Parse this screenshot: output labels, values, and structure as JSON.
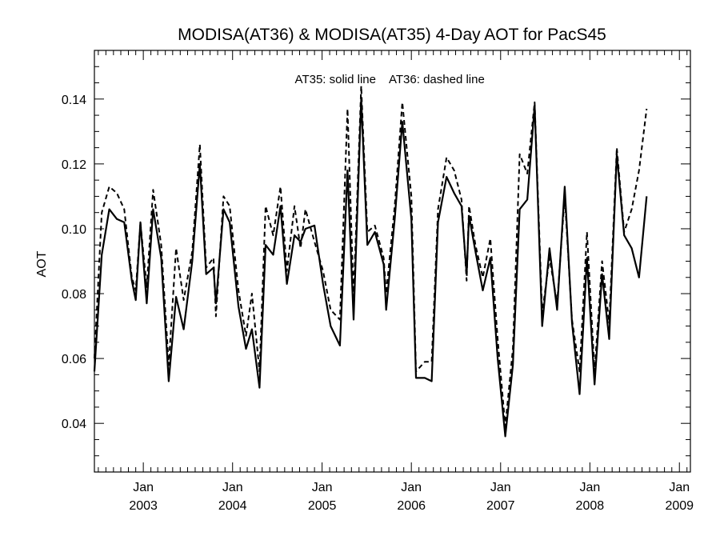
{
  "chart_data": {
    "type": "line",
    "title": "MODISA(AT36) & MODISA(AT35) 4-Day AOT for PacS45",
    "ylabel": "AOT",
    "xlabel": "",
    "annotation_solid": "AT35: solid line",
    "annotation_dashed": "AT36: dashed line",
    "ylim": [
      0.025,
      0.155
    ],
    "xlim": [
      "2002-06-15",
      "2009-02-15"
    ],
    "y_ticks": [
      0.04,
      0.06,
      0.08,
      0.1,
      0.12,
      0.14
    ],
    "y_tick_labels": [
      "0.04",
      "0.06",
      "0.08",
      "0.10",
      "0.12",
      "0.14"
    ],
    "x_ticks": [
      {
        "date": "2003-01-01",
        "month": "Jan",
        "year": "2003"
      },
      {
        "date": "2004-01-01",
        "month": "Jan",
        "year": "2004"
      },
      {
        "date": "2005-01-01",
        "month": "Jan",
        "year": "2005"
      },
      {
        "date": "2006-01-01",
        "month": "Jan",
        "year": "2006"
      },
      {
        "date": "2007-01-01",
        "month": "Jan",
        "year": "2007"
      },
      {
        "date": "2008-01-01",
        "month": "Jan",
        "year": "2008"
      },
      {
        "date": "2009-01-01",
        "month": "Jan",
        "year": "2009"
      }
    ],
    "grid": false,
    "series": [
      {
        "name": "AT35",
        "style": "solid",
        "points": [
          [
            "2002-06-15",
            0.056
          ],
          [
            "2002-07-15",
            0.092
          ],
          [
            "2002-08-15",
            0.106
          ],
          [
            "2002-09-15",
            0.103
          ],
          [
            "2002-10-15",
            0.102
          ],
          [
            "2002-11-15",
            0.084
          ],
          [
            "2002-12-01",
            0.078
          ],
          [
            "2002-12-20",
            0.102
          ],
          [
            "2003-01-15",
            0.077
          ],
          [
            "2003-02-10",
            0.106
          ],
          [
            "2003-03-15",
            0.091
          ],
          [
            "2003-04-15",
            0.053
          ],
          [
            "2003-05-15",
            0.079
          ],
          [
            "2003-06-15",
            0.069
          ],
          [
            "2003-07-20",
            0.09
          ],
          [
            "2003-08-20",
            0.12
          ],
          [
            "2003-09-15",
            0.086
          ],
          [
            "2003-10-15",
            0.088
          ],
          [
            "2003-10-25",
            0.077
          ],
          [
            "2003-11-25",
            0.106
          ],
          [
            "2003-12-20",
            0.102
          ],
          [
            "2004-01-25",
            0.076
          ],
          [
            "2004-02-25",
            0.063
          ],
          [
            "2004-03-20",
            0.069
          ],
          [
            "2004-04-20",
            0.051
          ],
          [
            "2004-05-15",
            0.095
          ],
          [
            "2004-06-15",
            0.092
          ],
          [
            "2004-07-15",
            0.107
          ],
          [
            "2004-08-10",
            0.083
          ],
          [
            "2004-09-10",
            0.098
          ],
          [
            "2004-10-05",
            0.096
          ],
          [
            "2004-10-25",
            0.1
          ],
          [
            "2004-12-01",
            0.101
          ],
          [
            "2005-01-05",
            0.083
          ],
          [
            "2005-02-05",
            0.07
          ],
          [
            "2005-03-15",
            0.064
          ],
          [
            "2005-04-15",
            0.118
          ],
          [
            "2005-05-10",
            0.072
          ],
          [
            "2005-06-10",
            0.14
          ],
          [
            "2005-07-05",
            0.095
          ],
          [
            "2005-08-05",
            0.099
          ],
          [
            "2005-09-10",
            0.089
          ],
          [
            "2005-09-20",
            0.075
          ],
          [
            "2005-10-25",
            0.103
          ],
          [
            "2005-11-25",
            0.133
          ],
          [
            "2006-01-01",
            0.103
          ],
          [
            "2006-01-20",
            0.054
          ],
          [
            "2006-02-25",
            0.054
          ],
          [
            "2006-03-25",
            0.053
          ],
          [
            "2006-04-20",
            0.102
          ],
          [
            "2006-05-25",
            0.116
          ],
          [
            "2006-06-25",
            0.111
          ],
          [
            "2006-07-25",
            0.107
          ],
          [
            "2006-08-15",
            0.086
          ],
          [
            "2006-08-25",
            0.104
          ],
          [
            "2006-09-20",
            0.093
          ],
          [
            "2006-10-20",
            0.081
          ],
          [
            "2006-11-20",
            0.091
          ],
          [
            "2006-12-20",
            0.06
          ],
          [
            "2007-01-20",
            0.036
          ],
          [
            "2007-02-20",
            0.058
          ],
          [
            "2007-03-20",
            0.106
          ],
          [
            "2007-04-20",
            0.109
          ],
          [
            "2007-05-20",
            0.138
          ],
          [
            "2007-06-20",
            0.07
          ],
          [
            "2007-07-20",
            0.094
          ],
          [
            "2007-08-20",
            0.075
          ],
          [
            "2007-09-20",
            0.113
          ],
          [
            "2007-10-20",
            0.071
          ],
          [
            "2007-11-20",
            0.049
          ],
          [
            "2007-12-20",
            0.091
          ],
          [
            "2008-01-20",
            0.052
          ],
          [
            "2008-02-20",
            0.086
          ],
          [
            "2008-03-20",
            0.066
          ],
          [
            "2008-04-20",
            0.123
          ],
          [
            "2008-05-20",
            0.098
          ],
          [
            "2008-06-20",
            0.094
          ],
          [
            "2008-07-20",
            0.085
          ],
          [
            "2008-08-20",
            0.11
          ]
        ]
      },
      {
        "name": "AT36",
        "style": "dashed",
        "points": [
          [
            "2002-06-15",
            0.06
          ],
          [
            "2002-07-15",
            0.105
          ],
          [
            "2002-08-15",
            0.113
          ],
          [
            "2002-09-15",
            0.111
          ],
          [
            "2002-10-15",
            0.106
          ],
          [
            "2002-11-15",
            0.085
          ],
          [
            "2002-12-01",
            0.081
          ],
          [
            "2002-12-20",
            0.102
          ],
          [
            "2003-01-15",
            0.082
          ],
          [
            "2003-02-10",
            0.112
          ],
          [
            "2003-03-15",
            0.095
          ],
          [
            "2003-04-15",
            0.058
          ],
          [
            "2003-05-15",
            0.094
          ],
          [
            "2003-06-15",
            0.078
          ],
          [
            "2003-07-20",
            0.093
          ],
          [
            "2003-08-20",
            0.126
          ],
          [
            "2003-09-15",
            0.088
          ],
          [
            "2003-10-15",
            0.091
          ],
          [
            "2003-10-25",
            0.073
          ],
          [
            "2003-11-25",
            0.11
          ],
          [
            "2003-12-20",
            0.107
          ],
          [
            "2004-01-25",
            0.081
          ],
          [
            "2004-02-25",
            0.067
          ],
          [
            "2004-03-20",
            0.08
          ],
          [
            "2004-04-20",
            0.056
          ],
          [
            "2004-05-15",
            0.107
          ],
          [
            "2004-06-15",
            0.098
          ],
          [
            "2004-07-15",
            0.113
          ],
          [
            "2004-08-10",
            0.087
          ],
          [
            "2004-09-10",
            0.107
          ],
          [
            "2004-10-05",
            0.094
          ],
          [
            "2004-10-25",
            0.106
          ],
          [
            "2004-12-01",
            0.096
          ],
          [
            "2005-01-05",
            0.087
          ],
          [
            "2005-02-05",
            0.075
          ],
          [
            "2005-03-15",
            0.072
          ],
          [
            "2005-04-15",
            0.137
          ],
          [
            "2005-05-10",
            0.079
          ],
          [
            "2005-06-10",
            0.144
          ],
          [
            "2005-07-05",
            0.099
          ],
          [
            "2005-08-05",
            0.101
          ],
          [
            "2005-09-10",
            0.091
          ],
          [
            "2005-09-20",
            0.08
          ],
          [
            "2005-10-25",
            0.107
          ],
          [
            "2005-11-25",
            0.139
          ],
          [
            "2006-01-01",
            0.11
          ],
          [
            "2006-01-20",
            0.056
          ],
          [
            "2006-02-25",
            0.059
          ],
          [
            "2006-03-25",
            0.059
          ],
          [
            "2006-04-20",
            0.106
          ],
          [
            "2006-05-25",
            0.122
          ],
          [
            "2006-06-25",
            0.118
          ],
          [
            "2006-07-25",
            0.109
          ],
          [
            "2006-08-15",
            0.084
          ],
          [
            "2006-08-25",
            0.107
          ],
          [
            "2006-09-20",
            0.095
          ],
          [
            "2006-10-20",
            0.085
          ],
          [
            "2006-11-20",
            0.097
          ],
          [
            "2006-12-20",
            0.066
          ],
          [
            "2007-01-20",
            0.039
          ],
          [
            "2007-02-20",
            0.063
          ],
          [
            "2007-03-20",
            0.123
          ],
          [
            "2007-04-20",
            0.117
          ],
          [
            "2007-05-20",
            0.139
          ],
          [
            "2007-06-20",
            0.074
          ],
          [
            "2007-07-20",
            0.091
          ],
          [
            "2007-08-20",
            0.077
          ],
          [
            "2007-09-20",
            0.11
          ],
          [
            "2007-10-20",
            0.072
          ],
          [
            "2007-11-20",
            0.056
          ],
          [
            "2007-12-20",
            0.099
          ],
          [
            "2008-01-20",
            0.056
          ],
          [
            "2008-02-20",
            0.09
          ],
          [
            "2008-03-20",
            0.071
          ],
          [
            "2008-04-20",
            0.125
          ],
          [
            "2008-05-20",
            0.099
          ],
          [
            "2008-06-20",
            0.106
          ],
          [
            "2008-07-20",
            0.118
          ],
          [
            "2008-08-20",
            0.137
          ]
        ]
      }
    ]
  }
}
